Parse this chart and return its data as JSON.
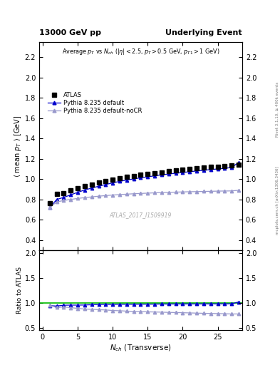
{
  "title_left": "13000 GeV pp",
  "title_right": "Underlying Event",
  "plot_title": "Average $p_T$ vs $N_{ch}$ ($|\\eta| < 2.5$, $p_T > 0.5$ GeV, $p_{T1} > 1$ GeV)",
  "ylabel_main": "$\\langle$ mean $p_T$ $\\rangle$ [GeV]",
  "ylabel_ratio": "Ratio to ATLAS",
  "xlabel": "$N_{ch}$ (Transverse)",
  "watermark": "ATLAS_2017_I1509919",
  "right_label": "mcplots.cern.ch [arXiv:1306.3436]",
  "right_label2": "Rivet 3.1.10, ≥ 400k events",
  "ylim_main": [
    0.3,
    2.35
  ],
  "ylim_ratio": [
    0.45,
    2.05
  ],
  "yticks_main": [
    0.4,
    0.6,
    0.8,
    1.0,
    1.2,
    1.4,
    1.6,
    1.8,
    2.0,
    2.2
  ],
  "yticks_ratio": [
    0.5,
    1.0,
    1.5,
    2.0
  ],
  "xlim": [
    -0.5,
    28.5
  ],
  "nch_atlas": [
    1,
    2,
    3,
    4,
    5,
    6,
    7,
    8,
    9,
    10,
    11,
    12,
    13,
    14,
    15,
    16,
    17,
    18,
    19,
    20,
    21,
    22,
    23,
    24,
    25,
    26,
    27,
    28
  ],
  "atlas_y": [
    0.762,
    0.855,
    0.862,
    0.886,
    0.912,
    0.934,
    0.948,
    0.965,
    0.978,
    0.997,
    1.008,
    1.022,
    1.033,
    1.042,
    1.052,
    1.06,
    1.068,
    1.077,
    1.083,
    1.09,
    1.098,
    1.105,
    1.112,
    1.118,
    1.124,
    1.13,
    1.138,
    1.145
  ],
  "pythia_default_x": [
    1,
    2,
    3,
    4,
    5,
    6,
    7,
    8,
    9,
    10,
    11,
    12,
    13,
    14,
    15,
    16,
    17,
    18,
    19,
    20,
    21,
    22,
    23,
    24,
    25,
    26,
    27,
    28
  ],
  "pythia_default_y": [
    0.718,
    0.8,
    0.82,
    0.845,
    0.87,
    0.893,
    0.912,
    0.93,
    0.947,
    0.963,
    0.978,
    0.991,
    1.002,
    1.013,
    1.023,
    1.032,
    1.042,
    1.05,
    1.058,
    1.065,
    1.073,
    1.08,
    1.087,
    1.094,
    1.1,
    1.106,
    1.115,
    1.165
  ],
  "pythia_nocr_x": [
    1,
    2,
    3,
    4,
    5,
    6,
    7,
    8,
    9,
    10,
    11,
    12,
    13,
    14,
    15,
    16,
    17,
    18,
    19,
    20,
    21,
    22,
    23,
    24,
    25,
    26,
    27,
    28
  ],
  "pythia_nocr_y": [
    0.722,
    0.775,
    0.79,
    0.8,
    0.81,
    0.818,
    0.825,
    0.832,
    0.838,
    0.843,
    0.848,
    0.852,
    0.856,
    0.859,
    0.862,
    0.865,
    0.868,
    0.87,
    0.872,
    0.874,
    0.876,
    0.877,
    0.879,
    0.88,
    0.882,
    0.883,
    0.884,
    0.89
  ],
  "color_atlas": "#000000",
  "color_pythia_default": "#0000cc",
  "color_pythia_nocr": "#9999cc",
  "color_ratio_line": "#00bb00",
  "bg_color": "#ffffff",
  "legend_labels": [
    "ATLAS",
    "Pythia 8.235 default",
    "Pythia 8.235 default-noCR"
  ]
}
